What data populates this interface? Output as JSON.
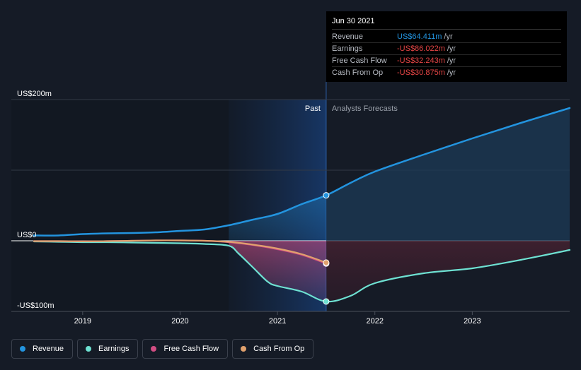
{
  "colors": {
    "background": "#151b26",
    "revenue": "#2394df",
    "earnings": "#6ee1d2",
    "free_cash_flow": "#d24d83",
    "cash_from_op": "#e0a16d",
    "grid": "#2b313d",
    "axis": "#ffffff"
  },
  "tooltip": {
    "date": "Jun 30 2021",
    "rows": [
      {
        "name": "Revenue",
        "value": "US$64.411m",
        "unit": "/yr",
        "color": "#2394df"
      },
      {
        "name": "Earnings",
        "value": "-US$86.022m",
        "unit": "/yr",
        "color": "#e64545"
      },
      {
        "name": "Free Cash Flow",
        "value": "-US$32.243m",
        "unit": "/yr",
        "color": "#e64545"
      },
      {
        "name": "Cash From Op",
        "value": "-US$30.875m",
        "unit": "/yr",
        "color": "#e64545"
      }
    ]
  },
  "legend": [
    {
      "label": "Revenue",
      "color": "#2394df"
    },
    {
      "label": "Earnings",
      "color": "#6ee1d2"
    },
    {
      "label": "Free Cash Flow",
      "color": "#d24d83"
    },
    {
      "label": "Cash From Op",
      "color": "#e0a16d"
    }
  ],
  "chart_data": {
    "type": "line",
    "title": "",
    "xlabel": "",
    "ylabel": "",
    "ylim": [
      -100,
      200
    ],
    "xlim": [
      2018.5,
      2024.0
    ],
    "y_tick_labels": [
      {
        "value": 200,
        "label": "US$200m"
      },
      {
        "value": 0,
        "label": "US$0"
      },
      {
        "value": -100,
        "label": "-US$100m"
      }
    ],
    "x_tick_labels": [
      {
        "value": 2019,
        "label": "2019"
      },
      {
        "value": 2020,
        "label": "2020"
      },
      {
        "value": 2021,
        "label": "2021"
      },
      {
        "value": 2022,
        "label": "2022"
      },
      {
        "value": 2023,
        "label": "2023"
      }
    ],
    "gridlines_y": [
      200,
      100,
      0,
      -100
    ],
    "past_region": {
      "start": 2020.5,
      "end": 2021.5,
      "label": "Past"
    },
    "forecast_label": "Analysts Forecasts",
    "highlight_x": 2021.5,
    "series": [
      {
        "name": "Revenue",
        "color": "#2394df",
        "x": [
          2018.5,
          2018.75,
          2019.0,
          2019.25,
          2019.5,
          2019.75,
          2020.0,
          2020.25,
          2020.5,
          2020.75,
          2021.0,
          2021.25,
          2021.5,
          2021.75,
          2022.0,
          2022.5,
          2023.0,
          2023.5,
          2024.0
        ],
        "y": [
          7.5,
          7.5,
          9.5,
          10.5,
          11,
          12,
          14,
          16,
          22,
          30,
          38,
          52,
          64.4,
          82,
          98,
          122,
          145,
          167,
          188
        ],
        "forecast_start_index": 12
      },
      {
        "name": "Earnings",
        "color": "#6ee1d2",
        "x": [
          2018.5,
          2018.75,
          2019.0,
          2019.25,
          2019.5,
          2019.75,
          2020.0,
          2020.25,
          2020.5,
          2020.6,
          2020.75,
          2020.9,
          2021.0,
          2021.25,
          2021.5,
          2021.75,
          2022.0,
          2022.5,
          2023.0,
          2023.5,
          2024.0
        ],
        "y": [
          -1,
          -1.5,
          -2,
          -2,
          -2.5,
          -3,
          -3.5,
          -4.5,
          -7,
          -18,
          -38,
          -58,
          -64,
          -72,
          -86,
          -78,
          -60,
          -46,
          -39,
          -27,
          -13
        ],
        "forecast_start_index": 14
      },
      {
        "name": "Free Cash Flow",
        "color": "#d24d83",
        "x": [
          2018.5,
          2018.75,
          2019.0,
          2019.25,
          2019.5,
          2019.75,
          2020.0,
          2020.25,
          2020.5,
          2020.75,
          2021.0,
          2021.25,
          2021.5
        ],
        "y": [
          -0.5,
          -0.5,
          -0.8,
          -0.5,
          0,
          0.5,
          0.5,
          0,
          -2,
          -6,
          -12,
          -20,
          -32.2
        ]
      },
      {
        "name": "Cash From Op",
        "color": "#e0a16d",
        "x": [
          2018.5,
          2018.75,
          2019.0,
          2019.25,
          2019.5,
          2019.75,
          2020.0,
          2020.25,
          2020.5,
          2020.75,
          2021.0,
          2021.25,
          2021.5
        ],
        "y": [
          -0.5,
          -0.5,
          -0.8,
          -0.5,
          0,
          0.5,
          0.5,
          0,
          -1.5,
          -5.5,
          -11,
          -19,
          -30.9
        ]
      }
    ]
  }
}
